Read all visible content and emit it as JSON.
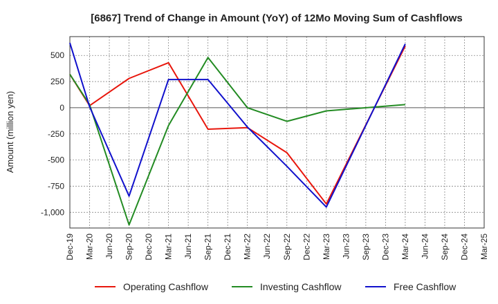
{
  "chart_data": {
    "type": "line",
    "title": "[6867]  Trend of Change in Amount (YoY) of 12Mo Moving Sum of Cashflows",
    "xlabel": "",
    "ylabel": "Amount (million yen)",
    "ylim": [
      -1150,
      680
    ],
    "yticks": [
      500,
      250,
      0,
      -250,
      -500,
      -750,
      -1000
    ],
    "ytick_labels": [
      "500",
      "250",
      "0",
      "-250",
      "-500",
      "-750",
      "-1,000"
    ],
    "categories": [
      "Dec-19",
      "Mar-20",
      "Jun-20",
      "Sep-20",
      "Dec-20",
      "Mar-21",
      "Jun-21",
      "Sep-21",
      "Dec-21",
      "Mar-22",
      "Jun-22",
      "Sep-22",
      "Dec-22",
      "Mar-23",
      "Jun-23",
      "Sep-23",
      "Dec-23",
      "Mar-24",
      "Jun-24",
      "Sep-24",
      "Dec-24",
      "Mar-25"
    ],
    "grid": true,
    "legend_position": "bottom",
    "series": [
      {
        "name": "Operating Cashflow",
        "color": "#e8160c",
        "values": [
          320,
          20,
          null,
          280,
          null,
          430,
          null,
          -205,
          null,
          -190,
          null,
          -430,
          null,
          -920,
          null,
          null,
          null,
          590,
          null,
          null,
          null,
          null
        ]
      },
      {
        "name": "Investing Cashflow",
        "color": "#228b22",
        "values": [
          320,
          30,
          null,
          -1120,
          null,
          -170,
          null,
          480,
          null,
          0,
          null,
          -130,
          null,
          -30,
          null,
          null,
          null,
          30,
          null,
          null,
          null,
          null
        ]
      },
      {
        "name": "Free Cashflow",
        "color": "#1010cc",
        "values": [
          620,
          10,
          null,
          -845,
          null,
          270,
          null,
          270,
          null,
          -185,
          null,
          -560,
          null,
          -950,
          null,
          null,
          null,
          610,
          null,
          null,
          null,
          null
        ]
      }
    ]
  }
}
